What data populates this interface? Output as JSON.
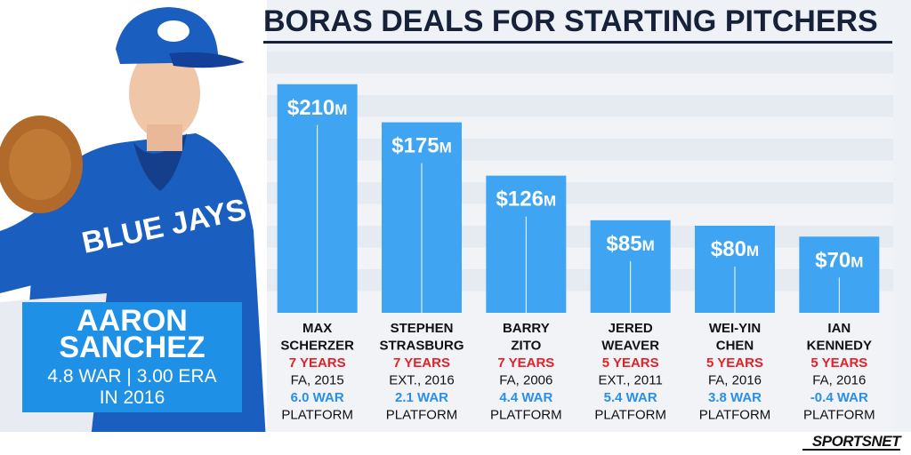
{
  "colors": {
    "bar": "#3fa4f2",
    "title": "#16213a",
    "years_text": "#e32227",
    "war_text": "#2a8fe6",
    "name_box": "#1e90e6"
  },
  "title": "BORAS DEALS FOR STARTING PITCHERS",
  "player": {
    "first_name": "AARON",
    "last_name": "SANCHEZ",
    "stats": "4.8 WAR | 3.00 ERA",
    "year": "IN 2016"
  },
  "logo": "SPORTSNET",
  "chart_data": {
    "type": "bar",
    "title": "BORAS DEALS FOR STARTING PITCHERS",
    "xlabel": "",
    "ylabel": "",
    "ylim": [
      0,
      240
    ],
    "grid": true,
    "categories": [
      "MAX SCHERZER",
      "STEPHEN STRASBURG",
      "BARRY ZITO",
      "JERED WEAVER",
      "WEI-YIN CHEN",
      "IAN KENNEDY"
    ],
    "values": [
      210,
      175,
      126,
      85,
      80,
      70
    ],
    "bar_labels": [
      "$210M",
      "$175M",
      "$126M",
      "$85M",
      "$80M",
      "$70M"
    ],
    "details": [
      {
        "name_line1": "MAX",
        "name_line2": "SCHERZER",
        "years": "7 YEARS",
        "deal": "FA, 2015",
        "war": "6.0 WAR",
        "platform": "PLATFORM"
      },
      {
        "name_line1": "STEPHEN",
        "name_line2": "STRASBURG",
        "years": "7 YEARS",
        "deal": "EXT., 2016",
        "war": "2.1 WAR",
        "platform": "PLATFORM"
      },
      {
        "name_line1": "BARRY",
        "name_line2": "ZITO",
        "years": "7 YEARS",
        "deal": "FA, 2006",
        "war": "4.4 WAR",
        "platform": "PLATFORM"
      },
      {
        "name_line1": "JERED",
        "name_line2": "WEAVER",
        "years": "5 YEARS",
        "deal": "EXT., 2011",
        "war": "5.4 WAR",
        "platform": "PLATFORM"
      },
      {
        "name_line1": "WEI-YIN",
        "name_line2": "CHEN",
        "years": "5 YEARS",
        "deal": "FA, 2016",
        "war": "3.8 WAR",
        "platform": "PLATFORM"
      },
      {
        "name_line1": "IAN",
        "name_line2": "KENNEDY",
        "years": "5 YEARS",
        "deal": "FA, 2016",
        "war": "-0.4 WAR",
        "platform": "PLATFORM"
      }
    ]
  }
}
